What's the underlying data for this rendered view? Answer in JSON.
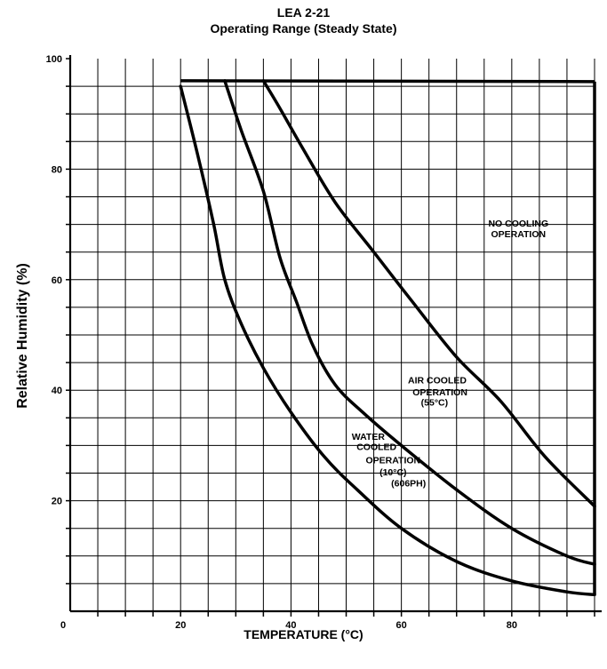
{
  "chart_data": {
    "type": "line",
    "title": "LEA 2-21",
    "subtitle": "Operating Range (Steady State)",
    "xlabel": "TEMPERATURE (°C)",
    "ylabel": "Relative Humidity (%)",
    "xlim": [
      0,
      95
    ],
    "ylim": [
      0,
      100
    ],
    "x_ticks": [
      "0",
      "20",
      "40",
      "60",
      "80"
    ],
    "y_ticks": [
      "20",
      "40",
      "60",
      "80",
      "100"
    ],
    "grid": true,
    "series": [
      {
        "labels": [
          "WATER",
          "COOLED",
          "OPERATION",
          "(10°C)",
          "(606PH)"
        ],
        "points": [
          [
            20,
            95
          ],
          [
            23,
            83
          ],
          [
            26,
            70
          ],
          [
            28,
            60
          ],
          [
            31,
            52
          ],
          [
            35,
            44
          ],
          [
            40,
            36
          ],
          [
            46,
            28
          ],
          [
            52,
            22
          ],
          [
            60,
            15
          ],
          [
            70,
            9
          ],
          [
            80,
            5.5
          ],
          [
            90,
            3.5
          ],
          [
            95,
            3
          ]
        ]
      },
      {
        "labels": [
          "AIR COOLED",
          "OPERATION",
          "(55°C)"
        ],
        "points": [
          [
            28,
            96
          ],
          [
            31,
            87
          ],
          [
            35,
            76
          ],
          [
            38,
            64
          ],
          [
            41,
            56
          ],
          [
            44,
            48
          ],
          [
            48,
            41
          ],
          [
            53,
            36
          ],
          [
            60,
            30
          ],
          [
            70,
            22
          ],
          [
            80,
            15
          ],
          [
            90,
            10
          ],
          [
            95,
            8.5
          ]
        ]
      },
      {
        "labels": [
          "NO COOLING",
          "OPERATION"
        ],
        "points": [
          [
            35,
            96
          ],
          [
            38,
            91
          ],
          [
            42,
            84
          ],
          [
            48,
            74
          ],
          [
            55,
            65
          ],
          [
            62,
            56
          ],
          [
            70,
            46
          ],
          [
            78,
            38
          ],
          [
            86,
            28
          ],
          [
            95,
            19
          ]
        ]
      }
    ],
    "boundary": {
      "top_rh": 96,
      "x_start": 20,
      "x_end": 95,
      "right_bottom_rh": 3
    }
  }
}
